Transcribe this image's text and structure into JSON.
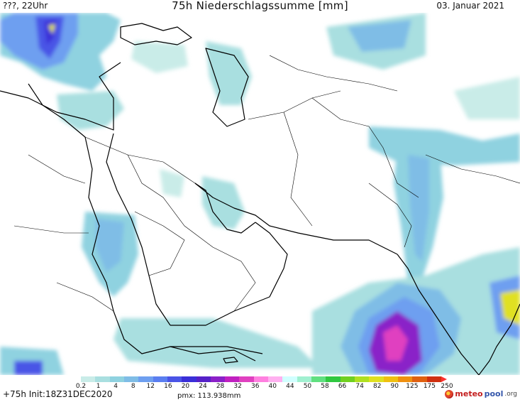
{
  "header": {
    "left": "???, 22Uhr",
    "title": "75h Niederschlagssumme [mm]",
    "right": "03. Januar 2021"
  },
  "legend": {
    "colors": [
      "#c9ece8",
      "#a9dfe0",
      "#8fd2e0",
      "#7fbde6",
      "#6e9ff0",
      "#5a7ef0",
      "#4a54e6",
      "#3a2fd8",
      "#5520c8",
      "#8a20c8",
      "#c020c0",
      "#e040c0",
      "#ff80e0",
      "#ffb0f0",
      "#d0ffff",
      "#a0f0d0",
      "#60e080",
      "#30c840",
      "#70d020",
      "#b0e020",
      "#e0e020",
      "#f0c010",
      "#f09010",
      "#e06010",
      "#d03010"
    ],
    "ticks": [
      "0.2",
      "1",
      "4",
      "8",
      "12",
      "16",
      "20",
      "24",
      "28",
      "32",
      "36",
      "40",
      "44",
      "50",
      "58",
      "66",
      "74",
      "82",
      "90",
      "125",
      "175",
      "250"
    ]
  },
  "footer": {
    "run": "+75h Init:18Z31DEC2020",
    "pmx": "pmx: 113.938mm",
    "brand_part1": "meteo",
    "brand_part2": "pool",
    "brand_part3": ".org"
  }
}
